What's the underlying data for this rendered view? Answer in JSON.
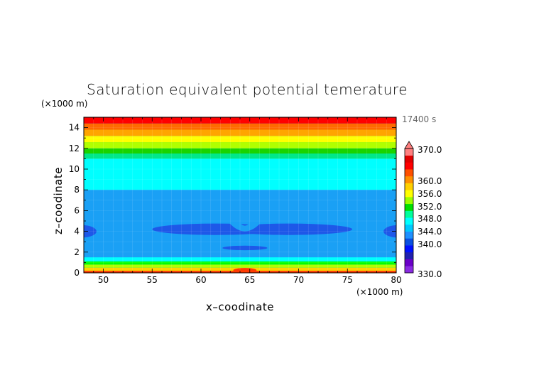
{
  "chart_data": {
    "type": "heatmap",
    "title": "Saturation equivalent potential temerature",
    "xlabel": "x–coodinate",
    "ylabel": "z–coodinate",
    "x_unit": "(×1000 m)",
    "y_unit": "(×1000 m)",
    "time_label": "17400 s",
    "xlim": [
      48,
      80
    ],
    "ylim": [
      0,
      15
    ],
    "x_ticks": [
      50,
      55,
      60,
      65,
      70,
      75,
      80
    ],
    "y_ticks": [
      0,
      2,
      4,
      6,
      8,
      10,
      12,
      14
    ],
    "grid": true,
    "colorbar": {
      "min": 330,
      "max": 370,
      "labels": [
        "370.0",
        "360.0",
        "356.0",
        "352.0",
        "348.0",
        "344.0",
        "340.0",
        "330.0"
      ],
      "colors": [
        "#8a2be2",
        "#6a00c8",
        "#2020b0",
        "#0010ff",
        "#0a50e0",
        "#1e90ff",
        "#00c8ff",
        "#00ffff",
        "#00ff9c",
        "#00e000",
        "#9cff00",
        "#ffff00",
        "#ffd000",
        "#ff9000",
        "#ff5000",
        "#ff0000",
        "#e00000",
        "#ff8080"
      ]
    },
    "horizontal_layers": [
      {
        "z_from": 0.0,
        "z_to": 0.2,
        "value": 360
      },
      {
        "z_from": 0.2,
        "z_to": 0.5,
        "value": 356
      },
      {
        "z_from": 0.5,
        "z_to": 0.8,
        "value": 352
      },
      {
        "z_from": 0.8,
        "z_to": 1.1,
        "value": 349
      },
      {
        "z_from": 1.1,
        "z_to": 1.5,
        "value": 346
      },
      {
        "z_from": 1.5,
        "z_to": 8.0,
        "value": 344.5
      },
      {
        "z_from": 8.0,
        "z_to": 11.0,
        "value": 346
      },
      {
        "z_from": 11.0,
        "z_to": 11.5,
        "value": 348
      },
      {
        "z_from": 11.5,
        "z_to": 12.0,
        "value": 350
      },
      {
        "z_from": 12.0,
        "z_to": 12.6,
        "value": 352
      },
      {
        "z_from": 12.6,
        "z_to": 13.2,
        "value": 355
      },
      {
        "z_from": 13.2,
        "z_to": 13.8,
        "value": 357
      },
      {
        "z_from": 13.8,
        "z_to": 14.4,
        "value": 359
      },
      {
        "z_from": 14.4,
        "z_to": 15.0,
        "value": 362
      }
    ],
    "features": [
      {
        "shape": "ellipse",
        "x_center": 61.5,
        "z_center": 4.2,
        "x_halfwidth": 6.5,
        "z_halfheight": 0.55,
        "value": 343
      },
      {
        "shape": "ellipse",
        "x_center": 69.0,
        "z_center": 4.2,
        "x_halfwidth": 6.5,
        "z_halfheight": 0.55,
        "value": 343
      },
      {
        "shape": "ellipse",
        "x_center": 47.8,
        "z_center": 4.0,
        "x_halfwidth": 1.5,
        "z_halfheight": 0.6,
        "value": 343
      },
      {
        "shape": "ellipse",
        "x_center": 80.2,
        "z_center": 4.0,
        "x_halfwidth": 1.5,
        "z_halfheight": 0.6,
        "value": 343
      },
      {
        "shape": "ellipse",
        "x_center": 64.5,
        "z_center": 2.4,
        "x_halfwidth": 2.3,
        "z_halfheight": 0.22,
        "value": 343
      },
      {
        "shape": "ellipse",
        "x_center": 64.5,
        "z_center": 0.25,
        "x_halfwidth": 1.2,
        "z_halfheight": 0.22,
        "value": 360
      }
    ]
  }
}
